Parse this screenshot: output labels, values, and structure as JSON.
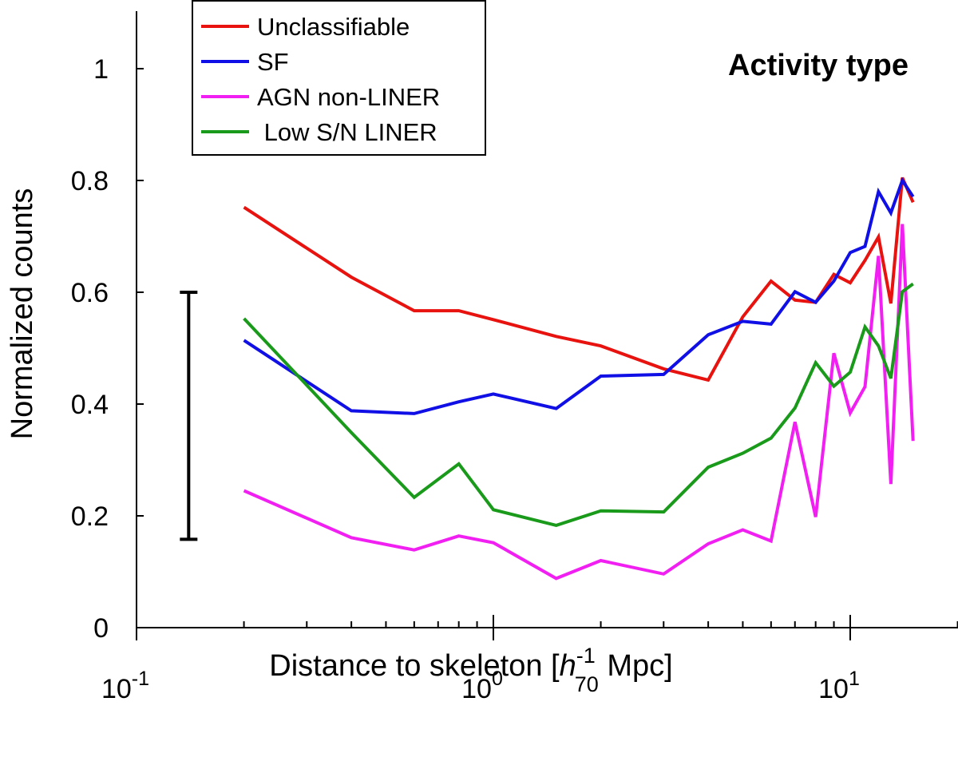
{
  "chart_data": {
    "type": "line",
    "title": "Activity type",
    "xlabel": {
      "prefix": "Distance to skeleton [",
      "var": "h",
      "sup": "-1",
      "sub": "70",
      "suffix": " Mpc]"
    },
    "ylabel": "Normalized counts",
    "xscale": "log",
    "xlim": [
      0.1,
      20
    ],
    "ylim": [
      0,
      1.1
    ],
    "x_ticks": [
      {
        "value": 0.1,
        "base": "10",
        "exp": "-1"
      },
      {
        "value": 1,
        "base": "10",
        "exp": "0"
      },
      {
        "value": 10,
        "base": "10",
        "exp": "1"
      }
    ],
    "y_ticks": [
      {
        "value": 0,
        "label": "0"
      },
      {
        "value": 0.2,
        "label": "0.2"
      },
      {
        "value": 0.4,
        "label": "0.4"
      },
      {
        "value": 0.6,
        "label": "0.6"
      },
      {
        "value": 0.8,
        "label": "0.8"
      },
      {
        "value": 1.0,
        "label": "1"
      }
    ],
    "legend_position": "top-left",
    "series": [
      {
        "name": "Unclassifiable",
        "color": "#e8120f",
        "x": [
          0.2,
          0.4,
          0.6,
          0.8,
          1.0,
          1.5,
          2,
          3,
          4,
          5,
          6,
          7,
          8,
          9,
          10,
          11,
          12,
          13,
          14,
          15
        ],
        "y": [
          0.752,
          0.627,
          0.567,
          0.567,
          0.551,
          0.521,
          0.504,
          0.463,
          0.443,
          0.556,
          0.62,
          0.586,
          0.582,
          0.632,
          0.617,
          0.657,
          0.699,
          0.58,
          0.805,
          0.761
        ]
      },
      {
        "name": "SF",
        "color": "#1010e6",
        "x": [
          0.2,
          0.4,
          0.6,
          0.8,
          1.0,
          1.5,
          2,
          3,
          4,
          5,
          6,
          7,
          8,
          9,
          10,
          11,
          12,
          13,
          14,
          15
        ],
        "y": [
          0.514,
          0.388,
          0.383,
          0.404,
          0.418,
          0.392,
          0.45,
          0.453,
          0.524,
          0.548,
          0.543,
          0.601,
          0.582,
          0.62,
          0.671,
          0.682,
          0.78,
          0.742,
          0.8,
          0.771
        ]
      },
      {
        "name": "AGN non-LINER",
        "color": "#f21ff2",
        "x": [
          0.2,
          0.4,
          0.6,
          0.8,
          1.0,
          1.5,
          2,
          3,
          4,
          5,
          6,
          7,
          8,
          9,
          10,
          11,
          12,
          13,
          14,
          15
        ],
        "y": [
          0.245,
          0.161,
          0.139,
          0.164,
          0.152,
          0.088,
          0.12,
          0.096,
          0.15,
          0.175,
          0.155,
          0.368,
          0.198,
          0.491,
          0.384,
          0.431,
          0.665,
          0.257,
          0.722,
          0.334
        ]
      },
      {
        "name": " Low S/N LINER",
        "color": "#1a9a1a",
        "x": [
          0.2,
          0.4,
          0.6,
          0.8,
          1.0,
          1.5,
          2,
          3,
          4,
          5,
          6,
          7,
          8,
          9,
          10,
          11,
          12,
          13,
          14,
          15
        ],
        "y": [
          0.553,
          0.349,
          0.233,
          0.293,
          0.211,
          0.183,
          0.209,
          0.207,
          0.287,
          0.312,
          0.339,
          0.393,
          0.474,
          0.432,
          0.457,
          0.538,
          0.504,
          0.446,
          0.601,
          0.615
        ]
      }
    ],
    "error_bar": {
      "x": 0.14,
      "y_low": 0.158,
      "y_high": 0.6,
      "color": "#000000"
    }
  }
}
